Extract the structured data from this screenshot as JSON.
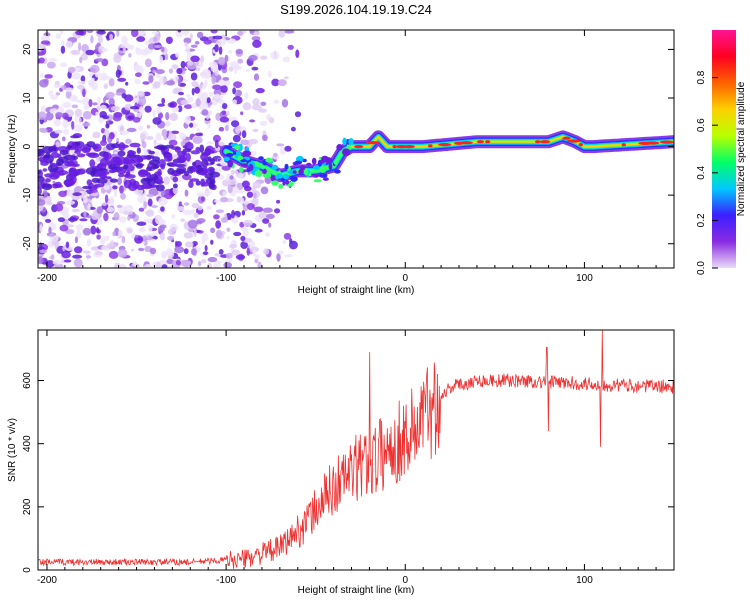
{
  "title": "S199.2026.104.19.19.C24",
  "chart_data": [
    {
      "type": "heatmap",
      "name": "spectrogram",
      "xlabel": "Height of straight line (km)",
      "ylabel": "Frequency (Hz)",
      "xlim": [
        -205,
        150
      ],
      "ylim": [
        -25,
        24
      ],
      "xticks": [
        -200,
        -100,
        0,
        100
      ],
      "xtick_labels": [
        "-200",
        "-100",
        "0",
        "100"
      ],
      "yticks": [
        -20,
        -10,
        0,
        10,
        20
      ],
      "ytick_labels": [
        "-20",
        "-10",
        "0",
        "10",
        "20"
      ],
      "ridge": {
        "x": [
          -100,
          -90,
          -80,
          -70,
          -60,
          -50,
          -40,
          -35,
          -30,
          -20,
          -15,
          -10,
          0,
          10,
          40,
          80,
          88,
          95,
          100,
          105,
          150
        ],
        "freq": [
          -1,
          -3,
          -4,
          -6,
          -5,
          -5,
          -4,
          -1,
          0,
          0,
          2,
          0,
          0,
          0,
          1,
          1,
          2,
          1,
          0,
          0,
          1
        ]
      },
      "colorbar": {
        "label": "Normalized spectral amplitude",
        "range": [
          0,
          1
        ],
        "ticks": [
          0.0,
          0.2,
          0.4,
          0.6,
          0.8
        ],
        "tick_labels": [
          "0.0",
          "0.2",
          "0.4",
          "0.6",
          "0.8"
        ],
        "colors": [
          "#e9dbf6",
          "#8a2be2",
          "#3b1fff",
          "#00c8ff",
          "#00ff66",
          "#b8ff00",
          "#ffd000",
          "#ff6000",
          "#ff0022",
          "#ff1493"
        ]
      }
    },
    {
      "type": "line",
      "name": "snr",
      "xlabel": "Height of straight line (km)",
      "ylabel": "SNR (10 * v/v)",
      "xlim": [
        -205,
        150
      ],
      "ylim": [
        0,
        760
      ],
      "xticks": [
        -200,
        -100,
        0,
        100
      ],
      "xtick_labels": [
        "-200",
        "-100",
        "0",
        "100"
      ],
      "yticks": [
        0,
        200,
        400,
        600
      ],
      "ytick_labels": [
        "0",
        "200",
        "400",
        "600"
      ],
      "color": "#ee3030",
      "trend": {
        "x": [
          -205,
          -120,
          -90,
          -70,
          -55,
          -45,
          -35,
          -25,
          -15,
          -5,
          5,
          15,
          25,
          40,
          60,
          80,
          100,
          120,
          150
        ],
        "y": [
          25,
          25,
          35,
          70,
          150,
          230,
          290,
          330,
          360,
          400,
          450,
          520,
          580,
          600,
          600,
          595,
          590,
          585,
          580
        ]
      },
      "spikes": [
        {
          "x": -20,
          "y": 690
        },
        {
          "x": 79,
          "y": 705
        },
        {
          "x": 80,
          "y": 440
        },
        {
          "x": 110,
          "y": 760
        },
        {
          "x": 109,
          "y": 390
        }
      ]
    }
  ]
}
